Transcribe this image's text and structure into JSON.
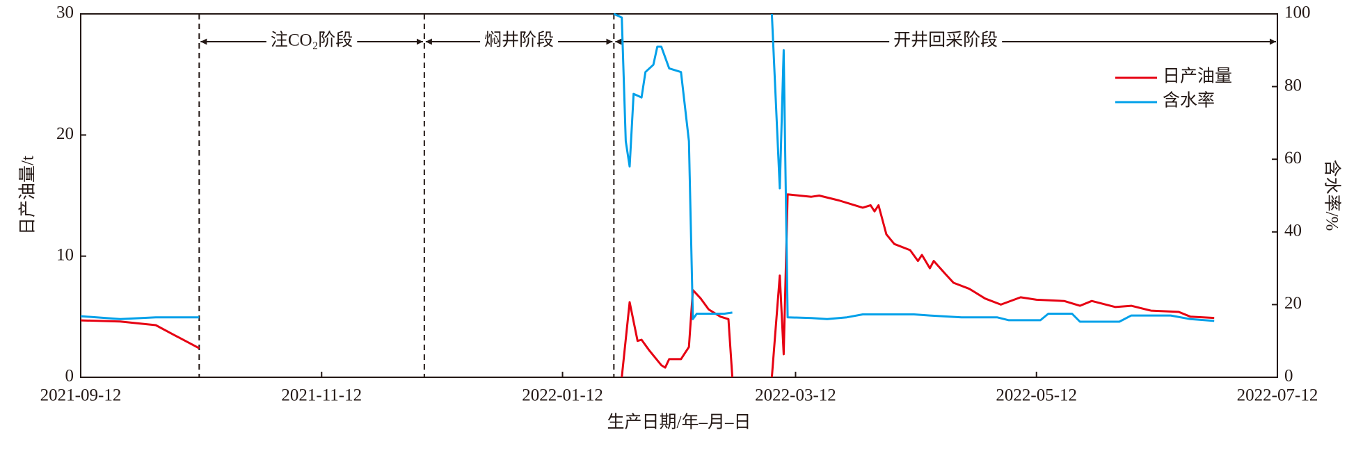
{
  "chart_data": {
    "type": "line",
    "xlabel": "生产日期/年–月–日",
    "ylabel": "日产油量/t",
    "y2label": "含水率/%",
    "xlim": [
      "2021-09-12",
      "2022-07-12"
    ],
    "xticks": [
      "2021-09-12",
      "2021-11-12",
      "2022-01-12",
      "2022-03-12",
      "2022-05-12",
      "2022-07-12"
    ],
    "ylim": [
      0,
      30
    ],
    "yticks": [
      0,
      10,
      20,
      30
    ],
    "y2lim": [
      0,
      100
    ],
    "y2ticks": [
      0,
      20,
      40,
      60,
      80,
      100
    ],
    "legend": "upper right",
    "phases": [
      {
        "label": "注CO₂阶段",
        "start": "2021-10-12",
        "end": "2021-12-08"
      },
      {
        "label": "焖井阶段",
        "start": "2021-12-08",
        "end": "2022-01-25"
      },
      {
        "label": "开井回采阶段",
        "start": "2022-01-25",
        "end": "2022-07-12"
      }
    ],
    "series": [
      {
        "name": "日产油量",
        "color": "#e60012",
        "x": [
          "2021-09-12",
          "2021-09-22",
          "2021-10-01",
          "2021-10-05",
          "2021-10-12",
          "2021-12-01",
          "2022-01-27",
          "2022-01-29",
          "2022-01-31",
          "2022-02-01",
          "2022-02-03",
          "2022-02-06",
          "2022-02-07",
          "2022-02-08",
          "2022-02-11",
          "2022-02-13",
          "2022-02-14",
          "2022-02-16",
          "2022-02-18",
          "2022-02-21",
          "2022-02-23",
          "2022-02-24",
          "2022-03-01",
          "2022-03-06",
          "2022-03-08",
          "2022-03-09",
          "2022-03-10",
          "2022-03-16",
          "2022-03-18",
          "2022-03-23",
          "2022-03-26",
          "2022-03-29",
          "2022-03-31",
          "2022-04-01",
          "2022-04-02",
          "2022-04-04",
          "2022-04-06",
          "2022-04-10",
          "2022-04-12",
          "2022-04-13",
          "2022-04-15",
          "2022-04-16",
          "2022-04-19",
          "2022-04-21",
          "2022-04-25",
          "2022-04-29",
          "2022-05-03",
          "2022-05-08",
          "2022-05-12",
          "2022-05-19",
          "2022-05-23",
          "2022-05-26",
          "2022-06-01",
          "2022-06-05",
          "2022-06-10",
          "2022-06-17",
          "2022-06-20",
          "2022-06-26"
        ],
        "values": [
          4.7,
          4.6,
          4.3,
          3.6,
          2.4,
          null,
          0,
          6.2,
          3.0,
          3.1,
          2.2,
          1.0,
          0.8,
          1.5,
          1.5,
          2.5,
          7.2,
          6.5,
          5.6,
          5.0,
          4.8,
          0,
          null,
          0,
          8.4,
          1.9,
          15.1,
          14.9,
          15.0,
          14.6,
          14.3,
          14.0,
          14.2,
          13.7,
          14.2,
          11.8,
          11.0,
          10.5,
          9.6,
          10.1,
          9.0,
          9.6,
          8.5,
          7.8,
          7.3,
          6.5,
          6.0,
          6.6,
          6.4,
          6.3,
          5.9,
          6.3,
          5.8,
          5.9,
          5.5,
          5.4,
          5.0,
          4.9
        ]
      },
      {
        "name": "含水率",
        "color": "#00a0e9",
        "axis": "y2",
        "x": [
          "2021-09-12",
          "2021-09-22",
          "2021-10-01",
          "2021-10-12",
          "2021-12-01",
          "2022-01-25",
          "2022-01-27",
          "2022-01-28",
          "2022-01-29",
          "2022-01-30",
          "2022-02-01",
          "2022-02-02",
          "2022-02-04",
          "2022-02-05",
          "2022-02-06",
          "2022-02-08",
          "2022-02-11",
          "2022-02-13",
          "2022-02-14",
          "2022-02-15",
          "2022-02-22",
          "2022-02-24",
          "2022-03-01",
          "2022-03-06",
          "2022-03-08",
          "2022-03-09",
          "2022-03-10",
          "2022-03-16",
          "2022-03-20",
          "2022-03-25",
          "2022-03-29",
          "2022-04-11",
          "2022-04-15",
          "2022-04-23",
          "2022-05-02",
          "2022-05-05",
          "2022-05-13",
          "2022-05-15",
          "2022-05-21",
          "2022-05-23",
          "2022-06-02",
          "2022-06-05",
          "2022-06-15",
          "2022-06-20",
          "2022-06-26"
        ],
        "values": [
          16.8,
          16,
          16.5,
          16.5,
          null,
          100,
          99,
          65,
          58,
          78,
          77,
          84,
          86,
          91,
          91,
          85,
          84,
          65,
          16,
          17.5,
          17.5,
          17.8,
          null,
          100,
          52,
          90,
          16.5,
          16.3,
          16,
          16.5,
          17.3,
          17.3,
          17,
          16.5,
          16.5,
          15.7,
          15.7,
          17.5,
          17.5,
          15.3,
          15.3,
          17,
          17,
          16,
          15.5
        ]
      }
    ]
  }
}
